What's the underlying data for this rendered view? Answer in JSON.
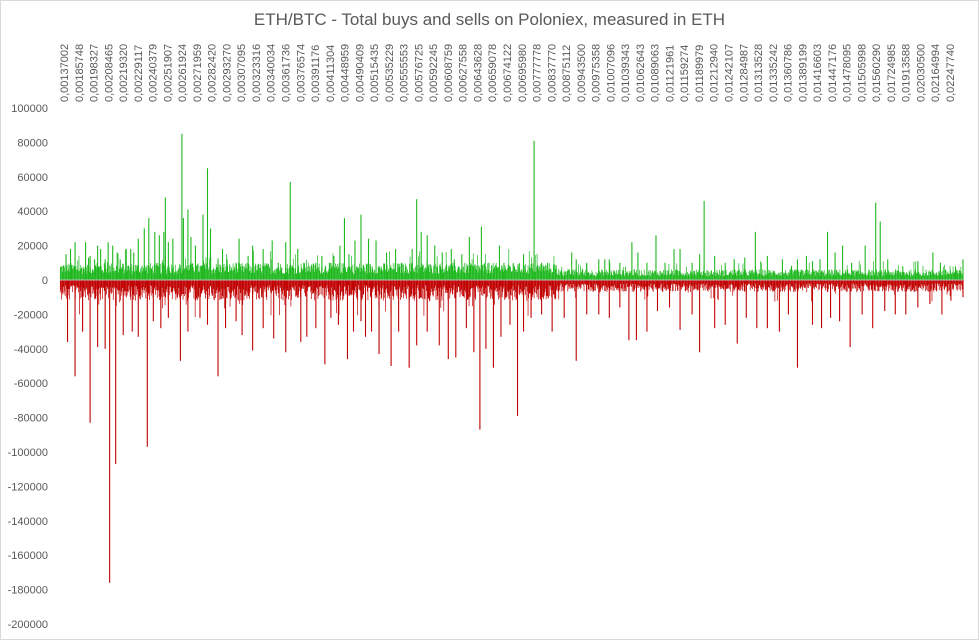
{
  "chart_data": {
    "type": "bar",
    "title": "ETH/BTC - Total buys and sells on Poloniex, measured in ETH",
    "xlabel": "",
    "ylabel": "",
    "ylim": [
      -200000,
      100000
    ],
    "yticks": [
      100000,
      80000,
      60000,
      40000,
      20000,
      0,
      -20000,
      -40000,
      -60000,
      -80000,
      -100000,
      -120000,
      -140000,
      -160000,
      -180000,
      -200000
    ],
    "x_tick_labels": [
      "0,00137002",
      "0,00185748",
      "0,00198327",
      "0,00208465",
      "0,00219320",
      "0,00229117",
      "0,00240379",
      "0,00251907",
      "0,00261924",
      "0,00271959",
      "0,00282420",
      "0,00293270",
      "0,00307095",
      "0,00323316",
      "0,00340034",
      "0,00361736",
      "0,00376574",
      "0,00391176",
      "0,00411304",
      "0,00448959",
      "0,00490409",
      "0,00515435",
      "0,00535229",
      "0,00555553",
      "0,00576725",
      "0,00592245",
      "0,00608759",
      "0,00627558",
      "0,00643628",
      "0,00659078",
      "0,00674122",
      "0,00695980",
      "0,00777778",
      "0,00837770",
      "0,00875112",
      "0,00943500",
      "0,00975358",
      "0,01007096",
      "0,01039343",
      "0,01062643",
      "0,01089063",
      "0,01121961",
      "0,01159274",
      "0,01189979",
      "0,01212940",
      "0,01242107",
      "0,01284987",
      "0,01313528",
      "0,01335242",
      "0,01360786",
      "0,01389199",
      "0,01416603",
      "0,01447176",
      "0,01478095",
      "0,01505998",
      "0,01560290",
      "0,01724985",
      "0,01913588",
      "0,02030500",
      "0,02164994",
      "0,02247740"
    ],
    "grid": false,
    "legend": "none",
    "series": [
      {
        "color": "#1fb81f",
        "peaks": [
          [
            0.04,
            15000
          ],
          [
            0.07,
            18000
          ],
          [
            0.1,
            22000
          ],
          [
            0.17,
            22000
          ],
          [
            0.19,
            13000
          ],
          [
            0.2,
            14000
          ],
          [
            0.23,
            12000
          ],
          [
            0.25,
            20000
          ],
          [
            0.27,
            18000
          ],
          [
            0.3,
            12000
          ],
          [
            0.32,
            22000
          ],
          [
            0.35,
            20000
          ],
          [
            0.38,
            16000
          ],
          [
            0.4,
            12000
          ],
          [
            0.44,
            18000
          ],
          [
            0.47,
            18000
          ],
          [
            0.49,
            16000
          ],
          [
            0.52,
            24000
          ],
          [
            0.56,
            30000
          ],
          [
            0.59,
            36000
          ],
          [
            0.63,
            28000
          ],
          [
            0.66,
            26000
          ],
          [
            0.69,
            28000
          ],
          [
            0.7,
            48000
          ],
          [
            0.72,
            22000
          ],
          [
            0.75,
            24000
          ],
          [
            0.81,
            85000
          ],
          [
            0.82,
            36000
          ],
          [
            0.85,
            41000
          ],
          [
            0.87,
            25000
          ],
          [
            0.9,
            20000
          ],
          [
            0.95,
            38000
          ],
          [
            0.98,
            65000
          ],
          [
            1.0,
            30000
          ],
          [
            1.05,
            12000
          ],
          [
            1.08,
            18000
          ],
          [
            1.11,
            12000
          ],
          [
            1.17,
            10000
          ],
          [
            1.19,
            24000
          ],
          [
            1.25,
            14000
          ],
          [
            1.28,
            20000
          ],
          [
            1.35,
            18000
          ],
          [
            1.41,
            23000
          ],
          [
            1.45,
            10000
          ],
          [
            1.5,
            22000
          ],
          [
            1.53,
            57000
          ],
          [
            1.58,
            18000
          ],
          [
            1.62,
            10000
          ],
          [
            1.66,
            8000
          ],
          [
            1.7,
            10000
          ],
          [
            1.74,
            14000
          ],
          [
            1.79,
            10000
          ],
          [
            1.82,
            14000
          ],
          [
            1.86,
            20000
          ],
          [
            1.89,
            36000
          ],
          [
            1.92,
            15000
          ],
          [
            1.96,
            23000
          ],
          [
            2.0,
            38000
          ],
          [
            2.05,
            24000
          ],
          [
            2.1,
            23000
          ],
          [
            2.17,
            16000
          ],
          [
            2.23,
            18000
          ],
          [
            2.27,
            10000
          ],
          [
            2.3,
            8000
          ],
          [
            2.34,
            18000
          ],
          [
            2.37,
            47000
          ],
          [
            2.4,
            28000
          ],
          [
            2.44,
            26000
          ],
          [
            2.49,
            20000
          ],
          [
            2.54,
            16000
          ],
          [
            2.6,
            18000
          ],
          [
            2.62,
            12000
          ],
          [
            2.67,
            15000
          ],
          [
            2.72,
            25000
          ],
          [
            2.8,
            31000
          ],
          [
            2.85,
            10000
          ],
          [
            2.92,
            20000
          ],
          [
            2.95,
            10000
          ],
          [
            3.02,
            8000
          ],
          [
            3.08,
            15000
          ],
          [
            3.15,
            81000
          ],
          [
            3.2,
            10000
          ],
          [
            3.25,
            6000
          ],
          [
            3.35,
            5000
          ],
          [
            3.4,
            16000
          ],
          [
            3.43,
            12000
          ],
          [
            3.5,
            10000
          ],
          [
            3.58,
            12000
          ],
          [
            3.62,
            12000
          ],
          [
            3.65,
            12000
          ],
          [
            3.72,
            10000
          ],
          [
            3.8,
            22000
          ],
          [
            3.84,
            16000
          ],
          [
            3.9,
            10000
          ],
          [
            3.96,
            26000
          ],
          [
            4.02,
            10000
          ],
          [
            4.08,
            18000
          ],
          [
            4.12,
            18000
          ],
          [
            4.2,
            10000
          ],
          [
            4.25,
            15000
          ],
          [
            4.28,
            46000
          ],
          [
            4.35,
            14000
          ],
          [
            4.42,
            10000
          ],
          [
            4.48,
            12000
          ],
          [
            4.55,
            13000
          ],
          [
            4.62,
            28000
          ],
          [
            4.7,
            14000
          ],
          [
            4.8,
            12000
          ],
          [
            4.86,
            8000
          ],
          [
            4.9,
            12000
          ],
          [
            4.96,
            14000
          ],
          [
            5.0,
            11000
          ],
          [
            5.05,
            12000
          ],
          [
            5.1,
            28000
          ],
          [
            5.15,
            16000
          ],
          [
            5.2,
            20000
          ],
          [
            5.26,
            10000
          ],
          [
            5.35,
            20000
          ],
          [
            5.42,
            45000
          ],
          [
            5.45,
            34000
          ],
          [
            5.5,
            12000
          ],
          [
            5.6,
            8000
          ],
          [
            5.7,
            11000
          ],
          [
            5.8,
            16000
          ],
          [
            5.85,
            10000
          ],
          [
            5.95,
            8000
          ],
          [
            6.0,
            12000
          ]
        ]
      },
      {
        "color": "#c00000",
        "peaks": [
          [
            0.05,
            -36000
          ],
          [
            0.1,
            -56000
          ],
          [
            0.15,
            -30000
          ],
          [
            0.2,
            -83000
          ],
          [
            0.25,
            -39000
          ],
          [
            0.3,
            -40000
          ],
          [
            0.33,
            -176000
          ],
          [
            0.37,
            -107000
          ],
          [
            0.42,
            -32000
          ],
          [
            0.48,
            -30000
          ],
          [
            0.52,
            -33000
          ],
          [
            0.58,
            -97000
          ],
          [
            0.62,
            -24000
          ],
          [
            0.67,
            -28000
          ],
          [
            0.72,
            -22000
          ],
          [
            0.8,
            -47000
          ],
          [
            0.85,
            -30000
          ],
          [
            0.93,
            -22000
          ],
          [
            0.98,
            -26000
          ],
          [
            1.05,
            -56000
          ],
          [
            1.1,
            -28000
          ],
          [
            1.17,
            -24000
          ],
          [
            1.21,
            -32000
          ],
          [
            1.28,
            -41000
          ],
          [
            1.35,
            -28000
          ],
          [
            1.42,
            -34000
          ],
          [
            1.5,
            -42000
          ],
          [
            1.6,
            -36000
          ],
          [
            1.64,
            -33000
          ],
          [
            1.7,
            -28000
          ],
          [
            1.76,
            -49000
          ],
          [
            1.8,
            -22000
          ],
          [
            1.85,
            -26000
          ],
          [
            1.91,
            -46000
          ],
          [
            1.95,
            -30000
          ],
          [
            2.0,
            -24000
          ],
          [
            2.03,
            -33000
          ],
          [
            2.07,
            -30000
          ],
          [
            2.12,
            -43000
          ],
          [
            2.2,
            -50000
          ],
          [
            2.25,
            -30000
          ],
          [
            2.32,
            -51000
          ],
          [
            2.37,
            -38000
          ],
          [
            2.44,
            -30000
          ],
          [
            2.52,
            -38000
          ],
          [
            2.58,
            -46000
          ],
          [
            2.63,
            -45000
          ],
          [
            2.7,
            -28000
          ],
          [
            2.75,
            -42000
          ],
          [
            2.79,
            -87000
          ],
          [
            2.83,
            -40000
          ],
          [
            2.88,
            -51000
          ],
          [
            2.93,
            -33000
          ],
          [
            2.99,
            -26000
          ],
          [
            3.04,
            -79000
          ],
          [
            3.08,
            -30000
          ],
          [
            3.13,
            -22000
          ],
          [
            3.2,
            -20000
          ],
          [
            3.27,
            -30000
          ],
          [
            3.35,
            -22000
          ],
          [
            3.43,
            -47000
          ],
          [
            3.5,
            -20000
          ],
          [
            3.58,
            -20000
          ],
          [
            3.65,
            -22000
          ],
          [
            3.72,
            -16000
          ],
          [
            3.78,
            -35000
          ],
          [
            3.83,
            -35000
          ],
          [
            3.9,
            -30000
          ],
          [
            3.97,
            -18000
          ],
          [
            4.05,
            -16000
          ],
          [
            4.12,
            -29000
          ],
          [
            4.2,
            -20000
          ],
          [
            4.25,
            -42000
          ],
          [
            4.35,
            -28000
          ],
          [
            4.42,
            -26000
          ],
          [
            4.5,
            -37000
          ],
          [
            4.56,
            -22000
          ],
          [
            4.63,
            -28000
          ],
          [
            4.7,
            -28000
          ],
          [
            4.78,
            -30000
          ],
          [
            4.84,
            -20000
          ],
          [
            4.9,
            -51000
          ],
          [
            5.0,
            -26000
          ],
          [
            5.06,
            -28000
          ],
          [
            5.12,
            -22000
          ],
          [
            5.18,
            -24000
          ],
          [
            5.25,
            -39000
          ],
          [
            5.33,
            -20000
          ],
          [
            5.4,
            -28000
          ],
          [
            5.48,
            -18000
          ],
          [
            5.55,
            -20000
          ],
          [
            5.62,
            -20000
          ],
          [
            5.7,
            -16000
          ],
          [
            5.78,
            -14000
          ],
          [
            5.86,
            -20000
          ],
          [
            5.92,
            -12000
          ],
          [
            6.0,
            -10000
          ]
        ]
      }
    ]
  }
}
